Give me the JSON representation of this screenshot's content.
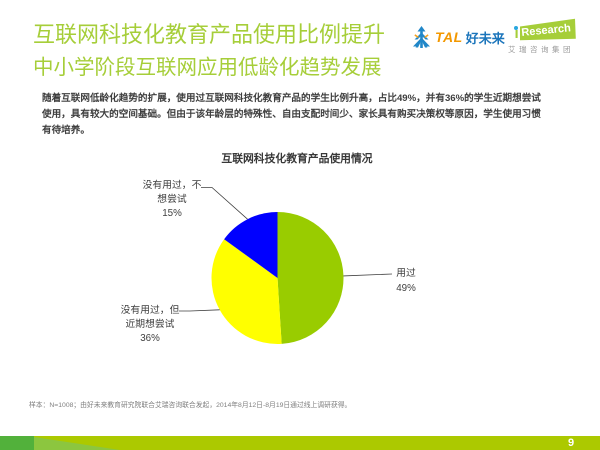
{
  "header": {
    "title_line1": "互联网科技化教育产品使用比例提升",
    "title_line2": "中小学阶段互联网应用低龄化趋势发展",
    "title_color": "#A6CE39"
  },
  "logos": {
    "tal_en": "TAL",
    "tal_cn": "好未来",
    "iresearch_i": "i",
    "iresearch_rest": "Research",
    "iresearch_cn": "艾瑞咨询集团",
    "iresearch_green": "#A6CE39"
  },
  "body": {
    "lines": [
      "随着互联网低龄化趋势的扩展，使用过互联网科技化教育产品的学生比例升高，占比49%，并有36%的学生近期想尝试",
      "使用，具有较大的空间基础。但由于该年龄层的特殊性、自由支配时间少、家长具有购买决策权等原因，学生使用习惯",
      "有待培养。"
    ]
  },
  "chart_data": {
    "type": "pie",
    "title": "互联网科技化教育产品使用情况",
    "start_angle_deg": 0,
    "direction": "clockwise",
    "legend_position": "none",
    "slices": [
      {
        "label": "用过",
        "value": 49,
        "pct_label": "49%",
        "color": "#99CC00",
        "label_lines": [
          "用过"
        ]
      },
      {
        "label": "没有用过，但近期想尝试",
        "value": 36,
        "pct_label": "36%",
        "color": "#FFFF00",
        "label_lines": [
          "没有用过，但",
          "近期想尝试"
        ]
      },
      {
        "label": "没有用过，不想尝试",
        "value": 15,
        "pct_label": "15%",
        "color": "#0000FF",
        "label_lines": [
          "没有用过，不",
          "想尝试"
        ]
      }
    ]
  },
  "footer": {
    "footnote": "样本：N=1008；由好未来教育研究院联合艾瑞咨询联合发起，2014年8月12日-8月19日通过线上调研获得。",
    "page_number": "9"
  }
}
